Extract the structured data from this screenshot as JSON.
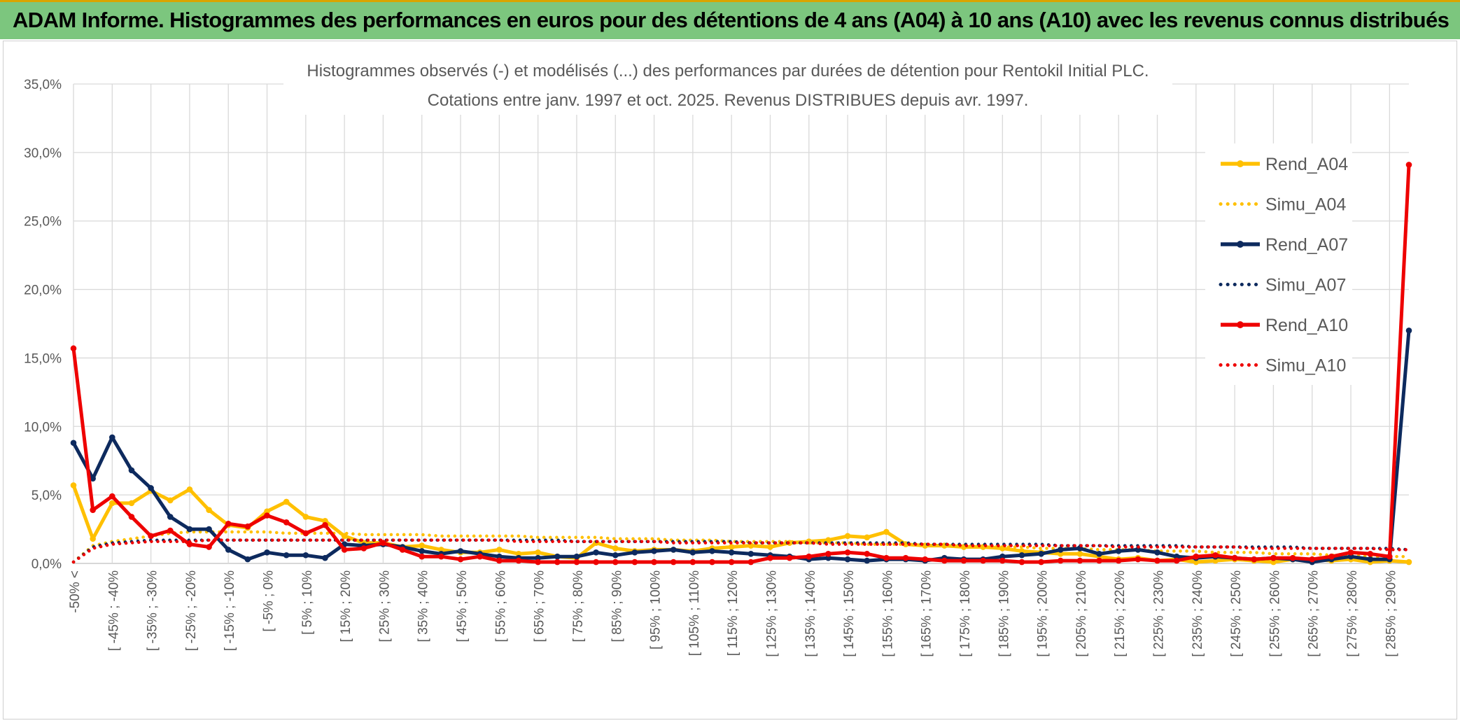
{
  "header": {
    "title": "ADAM Informe. Histogrammes des performances en euros pour des détentions de 4 ans (A04) à 10 ans (A10) avec les revenus connus distribués"
  },
  "chart_data": {
    "type": "line",
    "title_lines": [
      "Histogrammes observés (-) et modélisés (...) des performances par durées de détention pour Rentokil Initial PLC.",
      "Cotations entre janv. 1997 et oct. 2025. Revenus DISTRIBUES depuis avr. 1997."
    ],
    "xlabel": "",
    "ylabel": "",
    "ylim": [
      0,
      35
    ],
    "yticks": [
      "0,0%",
      "5,0%",
      "10,0%",
      "15,0%",
      "20,0%",
      "25,0%",
      "30,0%",
      "35,0%"
    ],
    "grid": true,
    "legend_position": "right",
    "x_tick_labels": [
      "-50% <",
      "[ -45% ; -40%",
      "[ -35% ; -30%",
      "[ -25% ; -20%",
      "[ -15% ; -10%",
      "[ -5% ; 0%",
      "[ 5% ; 10%",
      "[ 15% ; 20%",
      "[ 25% ; 30%",
      "[ 35% ; 40%",
      "[ 45% ; 50%",
      "[ 55% ; 60%",
      "[ 65% ; 70%",
      "[ 75% ; 80%",
      "[ 85% ; 90%",
      "[ 95% ; 100%",
      "[ 105% ; 110%",
      "[ 115% ; 120%",
      "[ 125% ; 130%",
      "[ 135% ; 140%",
      "[ 145% ; 150%",
      "[ 155% ; 160%",
      "[ 165% ; 170%",
      "[ 175% ; 180%",
      "[ 185% ; 190%",
      "[ 195% ; 200%",
      "[ 205% ; 210%",
      "[ 215% ; 220%",
      "[ 225% ; 230%",
      "[ 235% ; 240%",
      "[ 245% ; 250%",
      "[ 255% ; 260%",
      "[ 265% ; 270%",
      "[ 275% ; 280%",
      "[ 285% ; 290%"
    ],
    "x_count": 70,
    "series": [
      {
        "name": "Rend_A04",
        "color": "#ffc000",
        "style": "solid",
        "markers": true,
        "values": [
          5.7,
          1.8,
          4.4,
          4.4,
          5.3,
          4.6,
          5.4,
          3.9,
          2.8,
          2.6,
          3.8,
          4.5,
          3.4,
          3.1,
          2.0,
          1.5,
          1.5,
          1.2,
          1.3,
          1.0,
          0.8,
          0.8,
          1.0,
          0.7,
          0.8,
          0.5,
          0.4,
          1.5,
          1.1,
          0.9,
          1.0,
          1.0,
          0.9,
          1.1,
          1.2,
          1.3,
          1.2,
          1.5,
          1.6,
          1.7,
          2.0,
          1.9,
          2.3,
          1.4,
          1.3,
          1.3,
          1.2,
          1.2,
          1.1,
          0.9,
          0.8,
          0.7,
          0.7,
          0.5,
          0.3,
          0.4,
          0.2,
          0.3,
          0.1,
          0.2,
          0.3,
          0.2,
          0.1,
          0.3,
          0.3,
          0.2,
          0.3,
          0.1,
          0.2,
          0.1
        ]
      },
      {
        "name": "Simu_A04",
        "color": "#ffc000",
        "style": "dotted",
        "markers": false,
        "values": [
          0.1,
          1.3,
          1.6,
          1.8,
          2.0,
          2.2,
          2.3,
          2.3,
          2.3,
          2.3,
          2.3,
          2.2,
          2.2,
          2.2,
          2.2,
          2.1,
          2.1,
          2.1,
          2.1,
          2.0,
          2.0,
          2.0,
          2.0,
          2.0,
          1.9,
          1.9,
          1.9,
          1.9,
          1.8,
          1.8,
          1.8,
          1.7,
          1.7,
          1.7,
          1.6,
          1.6,
          1.6,
          1.6,
          1.5,
          1.5,
          1.5,
          1.4,
          1.4,
          1.4,
          1.3,
          1.3,
          1.3,
          1.2,
          1.2,
          1.2,
          1.1,
          1.1,
          1.1,
          1.0,
          1.0,
          1.0,
          0.9,
          0.9,
          0.9,
          0.8,
          0.8,
          0.8,
          0.7,
          0.7,
          0.7,
          0.6,
          0.6,
          0.5,
          0.5,
          0.5
        ]
      },
      {
        "name": "Rend_A07",
        "color": "#0d2a5e",
        "style": "solid",
        "markers": true,
        "values": [
          8.8,
          6.2,
          9.2,
          6.8,
          5.5,
          3.4,
          2.5,
          2.5,
          1.0,
          0.3,
          0.8,
          0.6,
          0.6,
          0.4,
          1.4,
          1.3,
          1.4,
          1.2,
          0.9,
          0.7,
          0.9,
          0.7,
          0.5,
          0.4,
          0.4,
          0.5,
          0.5,
          0.8,
          0.6,
          0.8,
          0.9,
          1.0,
          0.8,
          0.9,
          0.8,
          0.7,
          0.6,
          0.5,
          0.3,
          0.4,
          0.3,
          0.2,
          0.3,
          0.3,
          0.2,
          0.4,
          0.3,
          0.3,
          0.5,
          0.6,
          0.7,
          1.0,
          1.1,
          0.7,
          0.9,
          1.0,
          0.8,
          0.5,
          0.4,
          0.5,
          0.4,
          0.3,
          0.4,
          0.3,
          0.1,
          0.3,
          0.5,
          0.3,
          0.3,
          17.0
        ]
      },
      {
        "name": "Simu_A07",
        "color": "#0d2a5e",
        "style": "dotted",
        "markers": false,
        "values": [
          0.1,
          1.2,
          1.5,
          1.6,
          1.7,
          1.7,
          1.7,
          1.7,
          1.7,
          1.7,
          1.7,
          1.7,
          1.7,
          1.7,
          1.7,
          1.7,
          1.7,
          1.7,
          1.7,
          1.7,
          1.7,
          1.7,
          1.7,
          1.7,
          1.7,
          1.7,
          1.6,
          1.6,
          1.6,
          1.6,
          1.6,
          1.6,
          1.6,
          1.6,
          1.6,
          1.5,
          1.5,
          1.5,
          1.5,
          1.5,
          1.5,
          1.5,
          1.5,
          1.5,
          1.4,
          1.4,
          1.4,
          1.4,
          1.4,
          1.4,
          1.4,
          1.3,
          1.3,
          1.3,
          1.3,
          1.3,
          1.3,
          1.3,
          1.2,
          1.2,
          1.2,
          1.2,
          1.2,
          1.2,
          1.1,
          1.1,
          1.1,
          1.1,
          1.1,
          1.0
        ]
      },
      {
        "name": "Rend_A10",
        "color": "#ee0000",
        "style": "solid",
        "markers": true,
        "values": [
          15.7,
          3.9,
          4.9,
          3.4,
          2.0,
          2.4,
          1.4,
          1.2,
          2.9,
          2.7,
          3.5,
          3.0,
          2.2,
          2.8,
          1.0,
          1.1,
          1.5,
          1.0,
          0.5,
          0.5,
          0.3,
          0.5,
          0.2,
          0.2,
          0.1,
          0.1,
          0.1,
          0.1,
          0.1,
          0.1,
          0.1,
          0.1,
          0.1,
          0.1,
          0.1,
          0.1,
          0.4,
          0.4,
          0.5,
          0.7,
          0.8,
          0.7,
          0.4,
          0.4,
          0.3,
          0.2,
          0.2,
          0.2,
          0.2,
          0.1,
          0.1,
          0.2,
          0.2,
          0.2,
          0.2,
          0.3,
          0.2,
          0.2,
          0.5,
          0.6,
          0.4,
          0.3,
          0.4,
          0.4,
          0.3,
          0.5,
          0.8,
          0.7,
          0.5,
          29.1
        ]
      },
      {
        "name": "Simu_A10",
        "color": "#ee0000",
        "style": "dotted",
        "markers": false,
        "values": [
          0.1,
          1.1,
          1.4,
          1.5,
          1.6,
          1.6,
          1.6,
          1.7,
          1.7,
          1.7,
          1.7,
          1.7,
          1.7,
          1.7,
          1.7,
          1.7,
          1.7,
          1.7,
          1.7,
          1.7,
          1.7,
          1.7,
          1.7,
          1.6,
          1.6,
          1.6,
          1.6,
          1.6,
          1.6,
          1.6,
          1.6,
          1.5,
          1.5,
          1.5,
          1.5,
          1.5,
          1.5,
          1.5,
          1.5,
          1.4,
          1.4,
          1.4,
          1.4,
          1.4,
          1.4,
          1.4,
          1.3,
          1.3,
          1.3,
          1.3,
          1.3,
          1.3,
          1.3,
          1.3,
          1.2,
          1.2,
          1.2,
          1.2,
          1.2,
          1.2,
          1.2,
          1.1,
          1.1,
          1.1,
          1.1,
          1.1,
          1.1,
          1.1,
          1.0,
          1.0
        ]
      }
    ]
  }
}
